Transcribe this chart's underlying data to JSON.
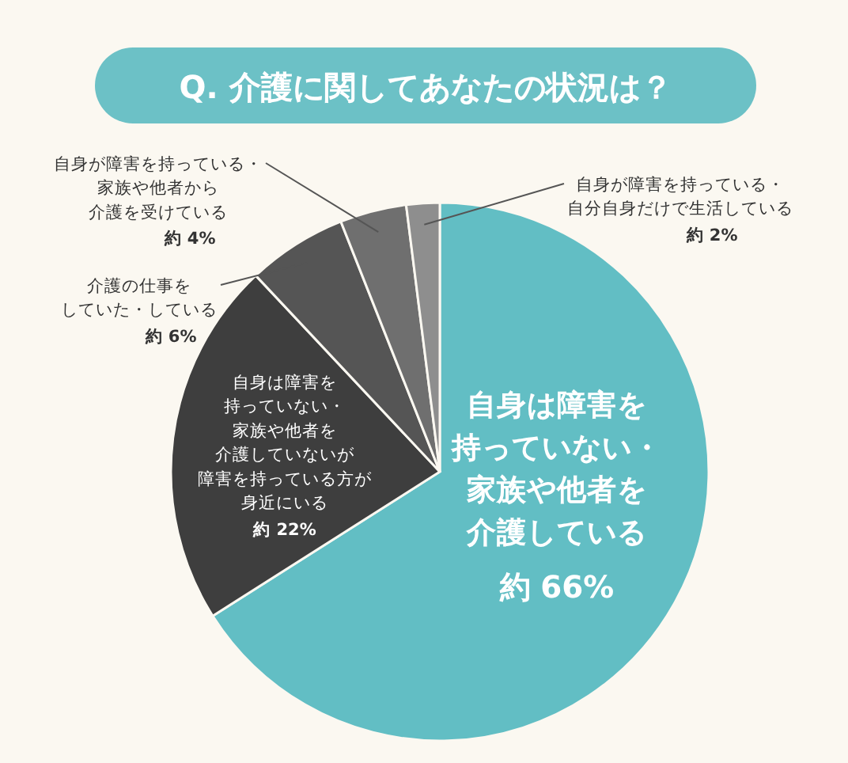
{
  "chart_data": {
    "type": "pie",
    "title": "Q. 介護に関してあなたの状況は？",
    "categories": [
      "自身は障害を持っていない・家族や他者を介護している",
      "自身は障害を持っていない・家族や他者を介護していないが障害を持っている方が身近にいる",
      "介護の仕事をしていた・している",
      "自身が障害を持っている・家族や他者から介護を受けている",
      "自身が障害を持っている・自分自身だけで生活している"
    ],
    "values": [
      66,
      22,
      6,
      4,
      2
    ],
    "colors": [
      "#62bec4",
      "#3e3e3e",
      "#555555",
      "#6f6f6f",
      "#8e8e8e"
    ],
    "value_labels": [
      "約 66%",
      "約 22%",
      "約 6%",
      "約 4%",
      "約 2%"
    ]
  }
}
